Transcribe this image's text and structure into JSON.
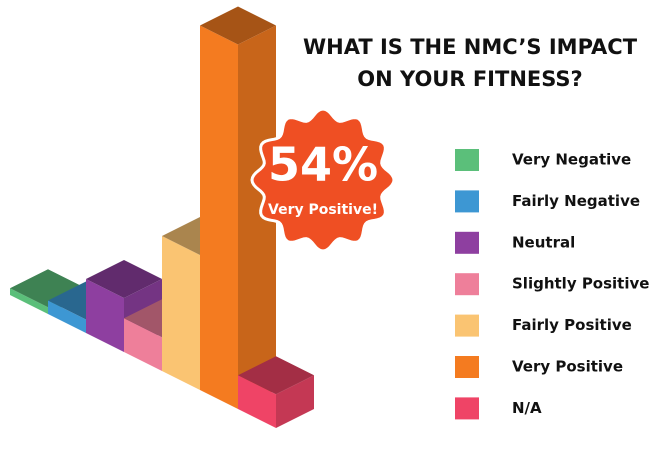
{
  "chart_data": {
    "type": "bar3d",
    "title": [
      "WHAT IS THE NMC’S IMPACT",
      "ON YOUR FITNESS?"
    ],
    "categories": [
      "Very Negative",
      "Fairly Negative",
      "Neutral",
      "Slightly Positive",
      "Fairly Positive",
      "Very Positive",
      "N/A"
    ],
    "values": [
      1,
      2,
      8,
      5,
      20,
      54,
      5
    ],
    "value_labels": [
      null,
      null,
      null,
      null,
      null,
      "54%",
      null
    ],
    "colors": [
      "#5bbf7a",
      "#3d97d3",
      "#8e3fa0",
      "#ee7f9a",
      "#fac472",
      "#f47b20",
      "#ef4466"
    ],
    "annotation": "Very Positive!",
    "legend": "right"
  }
}
